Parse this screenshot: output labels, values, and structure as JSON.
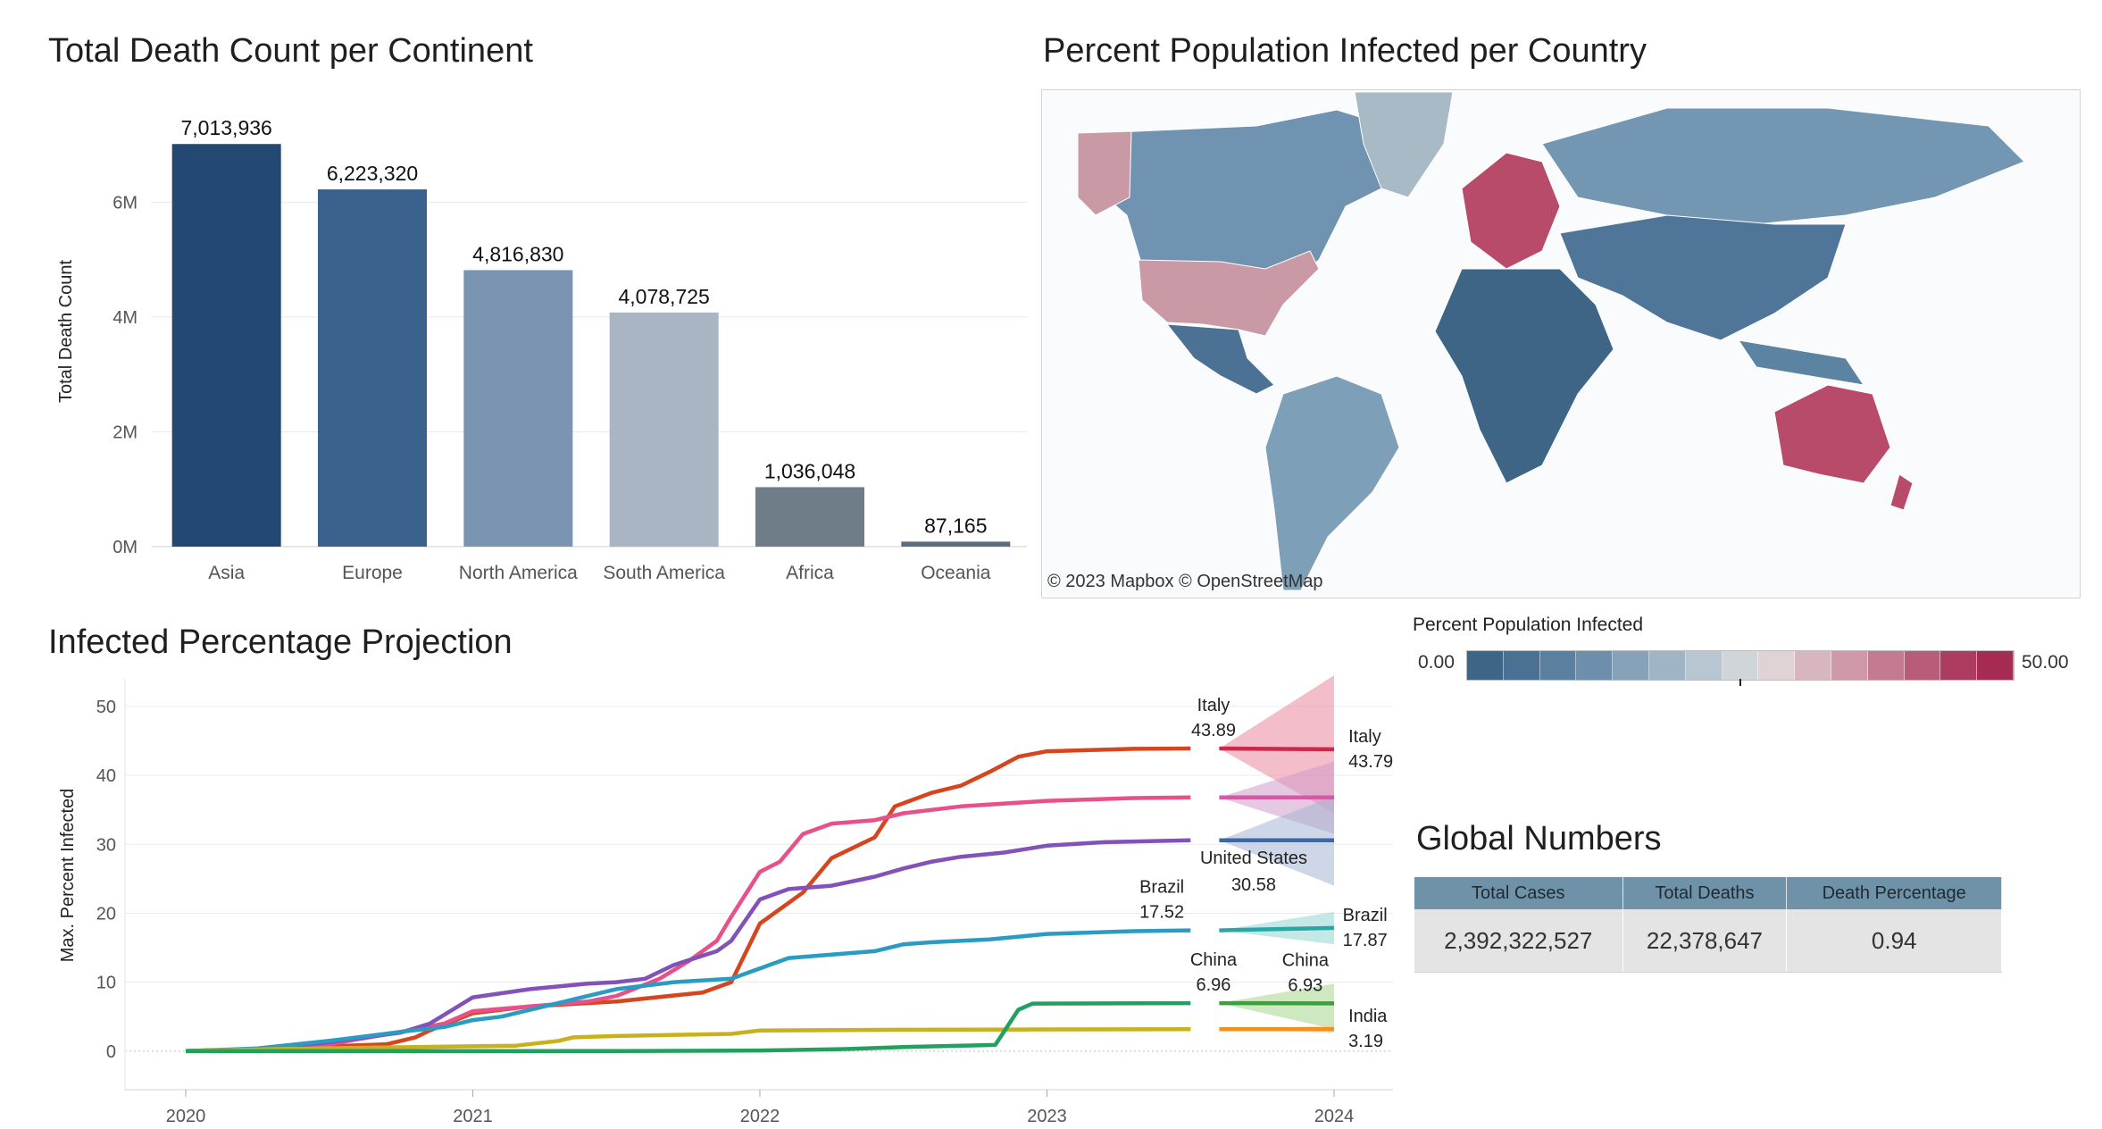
{
  "titles": {
    "bar": "Total Death Count per Continent",
    "map": "Percent Population Infected per Country",
    "line": "Infected Percentage Projection",
    "global": "Global Numbers"
  },
  "map": {
    "attribution": "© 2023 Mapbox  © OpenStreetMap",
    "legend": {
      "title": "Percent Population Infected",
      "min_label": "0.00",
      "max_label": "50.00",
      "colors": [
        "#3e6586",
        "#4a7193",
        "#5a7f9f",
        "#6d8fab",
        "#86a2b8",
        "#9fb4c5",
        "#b8c6d1",
        "#d0d5da",
        "#dfd3d6",
        "#d8b6bf",
        "#cf98a8",
        "#c47a91",
        "#b95c79",
        "#ac3d60",
        "#a62b53"
      ]
    }
  },
  "chart_data": [
    {
      "type": "bar",
      "title": "Total Death Count per Continent",
      "ylabel": "Total Death Count",
      "categories": [
        "Asia",
        "Europe",
        "North America",
        "South America",
        "Africa",
        "Oceania"
      ],
      "values": [
        7013936,
        6223320,
        4816830,
        4078725,
        1036048,
        87165
      ],
      "value_labels": [
        "7,013,936",
        "6,223,320",
        "4,816,830",
        "4,078,725",
        "1,036,048",
        "87,165"
      ],
      "colors": [
        "#234872",
        "#3b628d",
        "#7b94b1",
        "#a9b5c3",
        "#6f7d88",
        "#5b6d7e"
      ],
      "ylim": [
        0,
        7500000
      ],
      "yticks": [
        {
          "v": 0,
          "label": "0M"
        },
        {
          "v": 2000000,
          "label": "2M"
        },
        {
          "v": 4000000,
          "label": "4M"
        },
        {
          "v": 6000000,
          "label": "6M"
        }
      ],
      "grid": true
    },
    {
      "type": "line",
      "title": "Infected Percentage Projection",
      "ylabel": "Max. Percent Infected",
      "xlim": [
        2020.0,
        2024.2
      ],
      "ylim": [
        -3,
        54
      ],
      "xticks": [
        {
          "v": 2020.0,
          "label": "2020"
        },
        {
          "v": 2021.0,
          "label": "2021"
        },
        {
          "v": 2022.0,
          "label": "2022"
        },
        {
          "v": 2023.0,
          "label": "2023"
        },
        {
          "v": 2024.0,
          "label": "2024"
        }
      ],
      "yticks": [
        {
          "v": 0,
          "label": "0"
        },
        {
          "v": 10,
          "label": "10"
        },
        {
          "v": 20,
          "label": "20"
        },
        {
          "v": 30,
          "label": "30"
        },
        {
          "v": 40,
          "label": "40"
        },
        {
          "v": 50,
          "label": "50"
        }
      ],
      "series": [
        {
          "color": "#d6461e",
          "values": [
            [
              2020.0,
              0
            ],
            [
              2020.3,
              0.4
            ],
            [
              2020.7,
              1
            ],
            [
              2020.8,
              2
            ],
            [
              2020.85,
              3
            ],
            [
              2021.0,
              5.5
            ],
            [
              2021.2,
              6.5
            ],
            [
              2021.5,
              7.2
            ],
            [
              2021.8,
              8.5
            ],
            [
              2021.9,
              10
            ],
            [
              2022.0,
              18.5
            ],
            [
              2022.15,
              23
            ],
            [
              2022.25,
              28
            ],
            [
              2022.4,
              31
            ],
            [
              2022.47,
              35.5
            ],
            [
              2022.6,
              37.5
            ],
            [
              2022.7,
              38.5
            ],
            [
              2022.8,
              40.5
            ],
            [
              2022.9,
              42.7
            ],
            [
              2023.0,
              43.5
            ],
            [
              2023.3,
              43.85
            ],
            [
              2023.5,
              43.89
            ]
          ]
        },
        {
          "color": "#e8508a",
          "values": [
            [
              2020.0,
              0
            ],
            [
              2020.3,
              0.4
            ],
            [
              2020.5,
              1
            ],
            [
              2020.75,
              2.8
            ],
            [
              2020.9,
              4
            ],
            [
              2021.0,
              5.8
            ],
            [
              2021.2,
              6.5
            ],
            [
              2021.4,
              7.2
            ],
            [
              2021.5,
              8
            ],
            [
              2021.65,
              10.5
            ],
            [
              2021.75,
              13
            ],
            [
              2021.85,
              16
            ],
            [
              2021.9,
              19.5
            ],
            [
              2022.0,
              26
            ],
            [
              2022.07,
              27.5
            ],
            [
              2022.15,
              31.5
            ],
            [
              2022.25,
              33
            ],
            [
              2022.4,
              33.5
            ],
            [
              2022.5,
              34.5
            ],
            [
              2022.7,
              35.5
            ],
            [
              2023.0,
              36.3
            ],
            [
              2023.3,
              36.7
            ],
            [
              2023.5,
              36.8
            ]
          ]
        },
        {
          "color": "#8252b8",
          "values": [
            [
              2020.0,
              0
            ],
            [
              2020.3,
              0.4
            ],
            [
              2020.5,
              1.3
            ],
            [
              2020.75,
              2.7
            ],
            [
              2020.85,
              4
            ],
            [
              2021.0,
              7.8
            ],
            [
              2021.2,
              9
            ],
            [
              2021.4,
              9.8
            ],
            [
              2021.5,
              10
            ],
            [
              2021.6,
              10.5
            ],
            [
              2021.7,
              12.5
            ],
            [
              2021.85,
              14.5
            ],
            [
              2021.9,
              16
            ],
            [
              2022.0,
              22
            ],
            [
              2022.1,
              23.5
            ],
            [
              2022.25,
              24
            ],
            [
              2022.4,
              25.3
            ],
            [
              2022.5,
              26.5
            ],
            [
              2022.6,
              27.5
            ],
            [
              2022.7,
              28.2
            ],
            [
              2022.85,
              28.8
            ],
            [
              2023.0,
              29.8
            ],
            [
              2023.2,
              30.3
            ],
            [
              2023.5,
              30.58
            ]
          ]
        },
        {
          "color": "#2a9cc4",
          "values": [
            [
              2020.0,
              0
            ],
            [
              2020.25,
              0.4
            ],
            [
              2020.5,
              1.5
            ],
            [
              2020.75,
              2.8
            ],
            [
              2020.9,
              3.5
            ],
            [
              2021.0,
              4.5
            ],
            [
              2021.1,
              5
            ],
            [
              2021.3,
              7
            ],
            [
              2021.5,
              9
            ],
            [
              2021.7,
              10
            ],
            [
              2021.9,
              10.5
            ],
            [
              2022.0,
              12
            ],
            [
              2022.1,
              13.5
            ],
            [
              2022.25,
              14
            ],
            [
              2022.4,
              14.5
            ],
            [
              2022.5,
              15.5
            ],
            [
              2022.6,
              15.8
            ],
            [
              2022.8,
              16.2
            ],
            [
              2023.0,
              17
            ],
            [
              2023.3,
              17.4
            ],
            [
              2023.5,
              17.52
            ]
          ]
        },
        {
          "color": "#c8b11d",
          "values": [
            [
              2020.0,
              0
            ],
            [
              2020.3,
              0.3
            ],
            [
              2020.8,
              0.6
            ],
            [
              2021.0,
              0.7
            ],
            [
              2021.15,
              0.8
            ],
            [
              2021.3,
              1.5
            ],
            [
              2021.35,
              2.0
            ],
            [
              2021.5,
              2.2
            ],
            [
              2021.9,
              2.5
            ],
            [
              2022.0,
              3.0
            ],
            [
              2022.5,
              3.1
            ],
            [
              2023.0,
              3.15
            ],
            [
              2023.5,
              3.19
            ]
          ]
        },
        {
          "color": "#22a060",
          "values": [
            [
              2020.0,
              0
            ],
            [
              2020.5,
              0
            ],
            [
              2021.0,
              0
            ],
            [
              2021.5,
              0
            ],
            [
              2022.0,
              0.1
            ],
            [
              2022.3,
              0.3
            ],
            [
              2022.5,
              0.6
            ],
            [
              2022.7,
              0.8
            ],
            [
              2022.82,
              0.9
            ],
            [
              2022.9,
              6
            ],
            [
              2022.95,
              6.9
            ],
            [
              2023.5,
              6.96
            ]
          ]
        }
      ],
      "forecast": [
        {
          "color": "#c9294a",
          "band": "#e9869f",
          "start": 2023.6,
          "end": 2024.0,
          "value": 43.89,
          "end_value": 43.79,
          "lo": 34.5,
          "hi": 54.5
        },
        {
          "color": "#d45aa8",
          "band": "#d09ac8",
          "start": 2023.6,
          "end": 2024.0,
          "value": 36.8,
          "end_value": 36.8,
          "lo": 31.5,
          "hi": 42.0
        },
        {
          "color": "#3e67a8",
          "band": "#a6b6d6",
          "start": 2023.6,
          "end": 2024.0,
          "value": 30.58,
          "end_value": 30.58,
          "lo": 24.0,
          "hi": 37.0
        },
        {
          "color": "#28a6a8",
          "band": "#94d6d2",
          "start": 2023.6,
          "end": 2024.0,
          "value": 17.52,
          "end_value": 17.87,
          "lo": 15.5,
          "hi": 20.2
        },
        {
          "color": "#3ca03c",
          "band": "#a6d68a",
          "start": 2023.6,
          "end": 2024.0,
          "value": 6.96,
          "end_value": 6.93,
          "lo": 3.2,
          "hi": 9.8
        },
        {
          "color": "#f5901d",
          "band": "#f5c890",
          "start": 2023.6,
          "end": 2024.0,
          "value": 3.19,
          "end_value": 3.19,
          "lo": 2.7,
          "hi": 3.7
        }
      ],
      "annotations": [
        {
          "label": "Italy",
          "value": "43.89",
          "x": 2023.58,
          "y": 43.89,
          "anchor": "middle",
          "pos": "above"
        },
        {
          "label": "Italy",
          "value": "43.79",
          "x": 2024.05,
          "y": 43.79,
          "anchor": "start",
          "pos": "side"
        },
        {
          "label": "Brazil",
          "value": "17.52",
          "x": 2023.4,
          "y": 17.52,
          "anchor": "middle",
          "pos": "above"
        },
        {
          "label": "Brazil",
          "value": "17.87",
          "x": 2024.03,
          "y": 17.87,
          "anchor": "start",
          "pos": "side"
        },
        {
          "label": "United States",
          "value": "30.58",
          "x": 2023.72,
          "y": 30.58,
          "anchor": "middle",
          "pos": "below"
        },
        {
          "label": "China",
          "value": "6.96",
          "x": 2023.58,
          "y": 6.96,
          "anchor": "middle",
          "pos": "above"
        },
        {
          "label": "China",
          "value": "6.93",
          "x": 2023.9,
          "y": 6.93,
          "anchor": "middle",
          "pos": "above"
        },
        {
          "label": "India",
          "value": "3.19",
          "x": 2024.05,
          "y": 3.19,
          "anchor": "start",
          "pos": "side"
        }
      ]
    }
  ],
  "global": {
    "headers": [
      "Total Cases",
      "Total Deaths",
      "Death Percentage"
    ],
    "values": [
      "2,392,322,527",
      "22,378,647",
      "0.94"
    ]
  }
}
